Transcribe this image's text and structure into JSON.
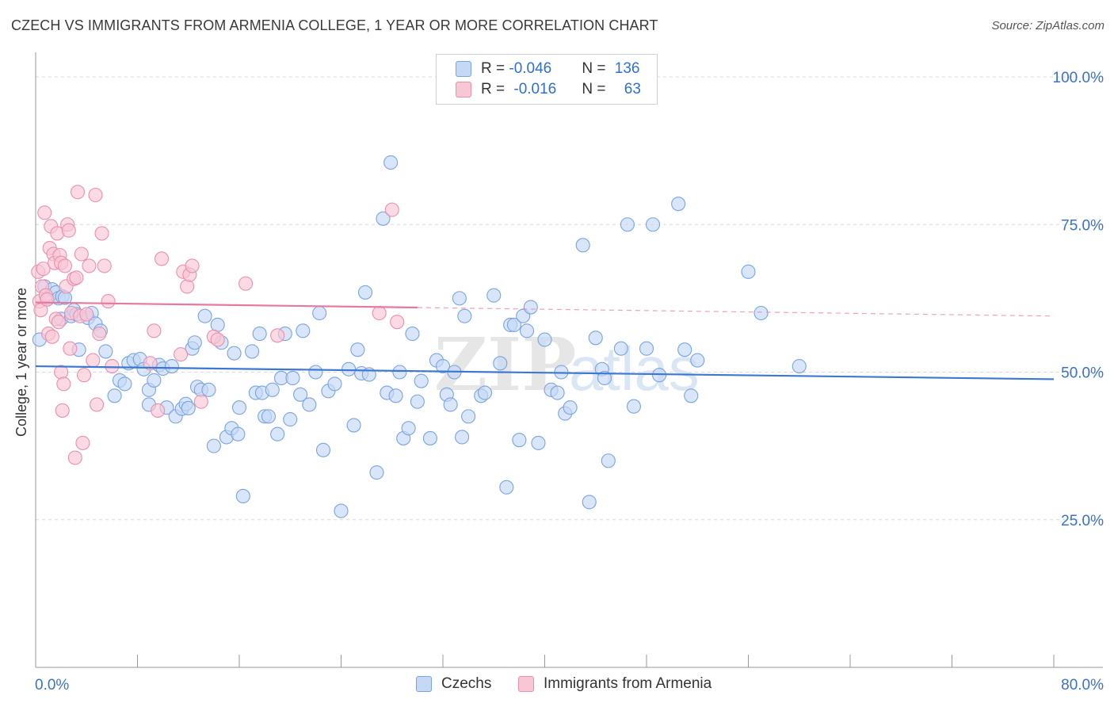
{
  "header": {
    "title": "CZECH VS IMMIGRANTS FROM ARMENIA COLLEGE, 1 YEAR OR MORE CORRELATION CHART",
    "source": "Source: ZipAtlas.com"
  },
  "legend": {
    "rows": [
      {
        "r_label": "R = ",
        "r_value": "-0.046",
        "n_label": "N = ",
        "n_value": "136"
      },
      {
        "r_label": "R = ",
        "r_value": "-0.016",
        "n_label": "N = ",
        "n_value": "63"
      }
    ]
  },
  "colors": {
    "czech_fill": "#c5d9f6",
    "czech_stroke": "#7aa4e0",
    "czech_line": "#3b78d3",
    "armenia_fill": "#f9c6d6",
    "armenia_stroke": "#eb8fae",
    "armenia_line": "#e8789f",
    "axis_text": "#3a72c9",
    "grid": "#d9d9d9"
  },
  "chart_data": {
    "type": "scatter",
    "xlabel": "",
    "ylabel": "College, 1 year or more",
    "xlim": [
      0,
      80
    ],
    "ylim": [
      0,
      100
    ],
    "x_tick_labels": [
      "0.0%",
      "80.0%"
    ],
    "y_tick_labels": [
      "25.0%",
      "50.0%",
      "75.0%",
      "100.0%"
    ],
    "y_ticks": [
      25,
      50,
      75,
      100
    ],
    "x_minor_ticks": [
      0,
      8,
      16,
      24,
      32,
      40,
      48,
      56,
      64,
      72,
      80
    ],
    "grid": true,
    "legend_position": "top-center",
    "watermark": "ZIPatlas",
    "series": [
      {
        "name": "Czechs",
        "r": -0.046,
        "n": 136,
        "trend": {
          "x0": 0,
          "y0": 51.0,
          "x1": 80,
          "y1": 48.8,
          "dashed_from_x": null
        },
        "points": [
          [
            0.3,
            55.5
          ],
          [
            0.7,
            64.5
          ],
          [
            1.0,
            62.5
          ],
          [
            1.3,
            64.0
          ],
          [
            1.6,
            63.5
          ],
          [
            1.8,
            62.5
          ],
          [
            2.0,
            59.0
          ],
          [
            2.1,
            62.8
          ],
          [
            2.3,
            62.6
          ],
          [
            2.8,
            59.5
          ],
          [
            3.0,
            60.5
          ],
          [
            3.2,
            59.8
          ],
          [
            3.4,
            53.8
          ],
          [
            4.1,
            59.2
          ],
          [
            4.4,
            60.0
          ],
          [
            4.7,
            58.2
          ],
          [
            5.1,
            57.0
          ],
          [
            5.5,
            53.5
          ],
          [
            6.2,
            46.0
          ],
          [
            6.6,
            48.6
          ],
          [
            7.0,
            48.0
          ],
          [
            7.3,
            51.5
          ],
          [
            7.7,
            52.0
          ],
          [
            8.2,
            52.2
          ],
          [
            8.5,
            50.5
          ],
          [
            8.9,
            44.5
          ],
          [
            8.9,
            47.0
          ],
          [
            9.3,
            48.6
          ],
          [
            9.7,
            51.2
          ],
          [
            10.0,
            50.6
          ],
          [
            10.3,
            44.0
          ],
          [
            10.7,
            51.0
          ],
          [
            11.0,
            42.5
          ],
          [
            11.5,
            43.8
          ],
          [
            11.8,
            44.6
          ],
          [
            12.0,
            43.9
          ],
          [
            12.3,
            54.0
          ],
          [
            12.5,
            55.0
          ],
          [
            12.7,
            47.5
          ],
          [
            13.0,
            47.0
          ],
          [
            13.3,
            59.5
          ],
          [
            13.6,
            47.0
          ],
          [
            14.0,
            37.5
          ],
          [
            14.3,
            58.0
          ],
          [
            14.6,
            55.0
          ],
          [
            15.0,
            39.0
          ],
          [
            15.4,
            40.5
          ],
          [
            15.6,
            53.2
          ],
          [
            15.9,
            39.5
          ],
          [
            16.0,
            44.0
          ],
          [
            16.3,
            29.0
          ],
          [
            17.0,
            53.5
          ],
          [
            17.3,
            46.5
          ],
          [
            17.6,
            56.5
          ],
          [
            17.8,
            46.5
          ],
          [
            18.0,
            42.5
          ],
          [
            18.3,
            42.5
          ],
          [
            18.6,
            47.0
          ],
          [
            19.0,
            39.5
          ],
          [
            19.3,
            49.0
          ],
          [
            19.6,
            56.5
          ],
          [
            20.0,
            42.0
          ],
          [
            20.2,
            49.0
          ],
          [
            20.8,
            46.2
          ],
          [
            21.0,
            57.0
          ],
          [
            21.5,
            44.5
          ],
          [
            22.0,
            50.0
          ],
          [
            22.3,
            60.0
          ],
          [
            22.6,
            36.8
          ],
          [
            23.0,
            46.8
          ],
          [
            23.5,
            48.0
          ],
          [
            24.0,
            26.5
          ],
          [
            24.6,
            50.5
          ],
          [
            25.0,
            41.0
          ],
          [
            25.3,
            53.8
          ],
          [
            25.6,
            49.8
          ],
          [
            25.9,
            63.5
          ],
          [
            26.2,
            49.6
          ],
          [
            26.8,
            33.0
          ],
          [
            27.3,
            76.0
          ],
          [
            27.6,
            46.5
          ],
          [
            27.9,
            85.5
          ],
          [
            28.3,
            46.0
          ],
          [
            28.6,
            50.0
          ],
          [
            28.9,
            38.8
          ],
          [
            29.3,
            40.5
          ],
          [
            29.6,
            56.5
          ],
          [
            30.0,
            45.0
          ],
          [
            30.3,
            48.5
          ],
          [
            31.0,
            38.8
          ],
          [
            31.5,
            52.0
          ],
          [
            32.0,
            51.0
          ],
          [
            32.3,
            46.2
          ],
          [
            32.6,
            44.5
          ],
          [
            32.9,
            50.0
          ],
          [
            33.3,
            62.5
          ],
          [
            33.5,
            39.0
          ],
          [
            33.7,
            59.5
          ],
          [
            34.0,
            42.5
          ],
          [
            35.0,
            46.0
          ],
          [
            35.3,
            46.5
          ],
          [
            36.0,
            63.0
          ],
          [
            36.5,
            51.5
          ],
          [
            37.0,
            30.5
          ],
          [
            37.3,
            58.0
          ],
          [
            37.6,
            58.0
          ],
          [
            38.0,
            38.5
          ],
          [
            38.3,
            59.5
          ],
          [
            38.6,
            57.0
          ],
          [
            38.9,
            61.0
          ],
          [
            39.5,
            38.0
          ],
          [
            40.0,
            55.5
          ],
          [
            40.5,
            47.0
          ],
          [
            41.0,
            46.5
          ],
          [
            41.3,
            50.0
          ],
          [
            41.6,
            43.0
          ],
          [
            42.0,
            44.0
          ],
          [
            43.0,
            71.5
          ],
          [
            43.5,
            28.0
          ],
          [
            44.0,
            55.8
          ],
          [
            44.5,
            50.5
          ],
          [
            44.7,
            49.0
          ],
          [
            45.0,
            35.0
          ],
          [
            46.0,
            54.0
          ],
          [
            46.5,
            75.0
          ],
          [
            47.0,
            44.2
          ],
          [
            48.0,
            54.0
          ],
          [
            48.5,
            75.0
          ],
          [
            49.0,
            49.5
          ],
          [
            50.5,
            78.5
          ],
          [
            51.0,
            53.8
          ],
          [
            51.5,
            46.0
          ],
          [
            52.0,
            52.0
          ],
          [
            56.0,
            67.0
          ],
          [
            57.0,
            60.0
          ],
          [
            60.0,
            51.0
          ]
        ]
      },
      {
        "name": "Immigrants from Armenia",
        "r": -0.016,
        "n": 63,
        "trend": {
          "x0": 0,
          "y0": 61.8,
          "x1": 80,
          "y1": 59.5,
          "dashed_from_x": 30
        },
        "points": [
          [
            0.2,
            67.0
          ],
          [
            0.3,
            62.0
          ],
          [
            0.4,
            60.5
          ],
          [
            0.5,
            64.5
          ],
          [
            0.6,
            67.5
          ],
          [
            0.7,
            77.0
          ],
          [
            0.8,
            63.0
          ],
          [
            0.9,
            62.3
          ],
          [
            1.0,
            56.5
          ],
          [
            1.1,
            71.0
          ],
          [
            1.2,
            74.7
          ],
          [
            1.3,
            56.0
          ],
          [
            1.4,
            70.0
          ],
          [
            1.5,
            68.5
          ],
          [
            1.6,
            59.0
          ],
          [
            1.7,
            73.5
          ],
          [
            1.8,
            58.5
          ],
          [
            1.9,
            69.8
          ],
          [
            2.0,
            50.0
          ],
          [
            2.0,
            68.5
          ],
          [
            2.1,
            43.5
          ],
          [
            2.2,
            48.0
          ],
          [
            2.3,
            68.0
          ],
          [
            2.4,
            64.5
          ],
          [
            2.5,
            75.0
          ],
          [
            2.6,
            74.0
          ],
          [
            2.7,
            54.0
          ],
          [
            2.8,
            60.0
          ],
          [
            3.0,
            65.8
          ],
          [
            3.1,
            35.5
          ],
          [
            3.2,
            66.0
          ],
          [
            3.3,
            80.5
          ],
          [
            3.5,
            59.5
          ],
          [
            3.6,
            70.0
          ],
          [
            3.7,
            38.0
          ],
          [
            3.8,
            49.5
          ],
          [
            4.0,
            59.8
          ],
          [
            4.2,
            68.0
          ],
          [
            4.5,
            52.0
          ],
          [
            4.7,
            80.0
          ],
          [
            4.8,
            44.5
          ],
          [
            5.0,
            56.5
          ],
          [
            5.2,
            73.5
          ],
          [
            5.4,
            68.0
          ],
          [
            5.7,
            62.0
          ],
          [
            9.0,
            51.5
          ],
          [
            9.3,
            57.0
          ],
          [
            9.6,
            43.5
          ],
          [
            9.9,
            69.2
          ],
          [
            11.4,
            53.0
          ],
          [
            11.6,
            67.0
          ],
          [
            11.9,
            64.5
          ],
          [
            12.1,
            66.5
          ],
          [
            12.3,
            68.0
          ],
          [
            13.0,
            45.0
          ],
          [
            14.0,
            56.0
          ],
          [
            14.3,
            55.5
          ],
          [
            16.5,
            65.0
          ],
          [
            19.0,
            56.2
          ],
          [
            27.0,
            60.0
          ],
          [
            28.0,
            77.5
          ],
          [
            28.4,
            58.5
          ],
          [
            6.0,
            51.0
          ]
        ]
      }
    ]
  },
  "bottom_legend": {
    "items": [
      {
        "label": "Czechs"
      },
      {
        "label": "Immigrants from Armenia"
      }
    ]
  }
}
